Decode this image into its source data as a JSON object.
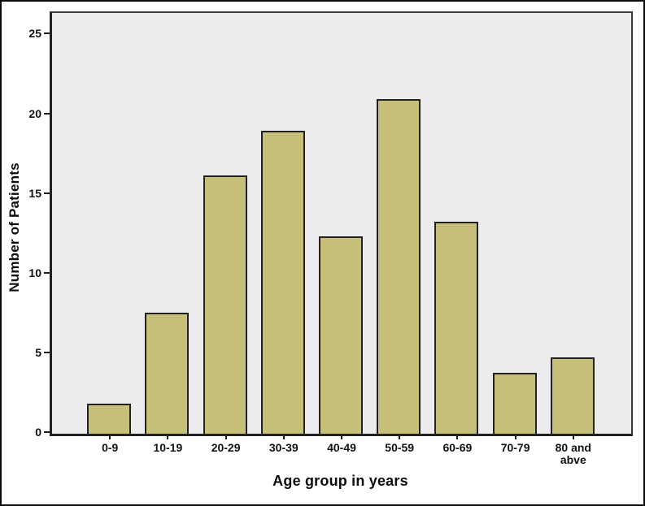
{
  "chart_data": {
    "type": "bar",
    "title": "",
    "categories": [
      "0-9",
      "10-19",
      "20-29",
      "30-39",
      "40-49",
      "50-59",
      "60-69",
      "70-79",
      "80 and abve"
    ],
    "values": [
      1.9,
      7.6,
      16.2,
      19.0,
      12.4,
      21.0,
      13.3,
      3.8,
      4.8
    ],
    "xlabel": "Age group in years",
    "ylabel": "Number of Patients",
    "yticks": [
      0,
      5,
      10,
      15,
      20,
      25
    ],
    "ylim": [
      0,
      26.4
    ],
    "grid": false,
    "legend": false,
    "colors": {
      "bar_fill": "#c6c07b",
      "bar_border": "#222222",
      "plot_background": "#ededef",
      "axis": "#1c1c1c",
      "canvas_background": "#ffffff",
      "outer_border": "#0a0a0a"
    }
  }
}
